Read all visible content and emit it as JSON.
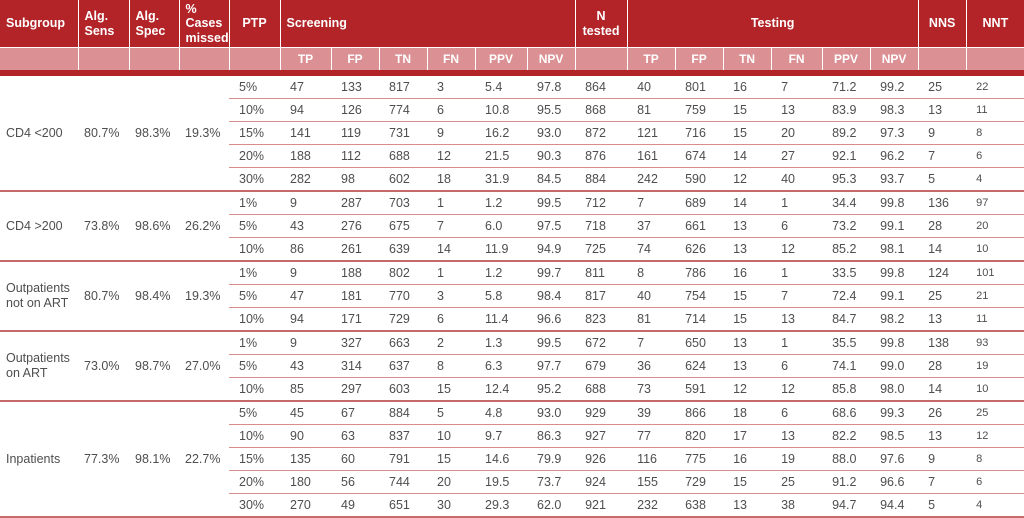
{
  "colors": {
    "header_dark": "#b22428",
    "header_light": "#db9093",
    "inner_rule": "#d98c8c",
    "group_rule": "#c66a6a",
    "body_text": "#4e4e4e"
  },
  "table": {
    "header": {
      "subgroup": "Subgroup",
      "alg_sens": "Alg. Sens",
      "alg_spec": "Alg. Spec",
      "cases_missed": "% Cases missed",
      "ptp": "PTP",
      "screening": "Screening",
      "n_tested": "N tested",
      "testing": "Testing",
      "nns": "NNS",
      "nnt": "NNT",
      "sub_columns": [
        "TP",
        "FP",
        "TN",
        "FN",
        "PPV",
        "NPV"
      ]
    },
    "groups": [
      {
        "subgroup": "CD4 <200",
        "alg_sens": "80.7%",
        "alg_spec": "98.3%",
        "cases_missed": "19.3%",
        "rows": [
          {
            "ptp": "5%",
            "screening": [
              "47",
              "133",
              "817",
              "3",
              "5.4",
              "97.8"
            ],
            "n_tested": "864",
            "testing": [
              "40",
              "801",
              "16",
              "7",
              "71.2",
              "99.2"
            ],
            "nns": "25",
            "nnt": "22"
          },
          {
            "ptp": "10%",
            "screening": [
              "94",
              "126",
              "774",
              "6",
              "10.8",
              "95.5"
            ],
            "n_tested": "868",
            "testing": [
              "81",
              "759",
              "15",
              "13",
              "83.9",
              "98.3"
            ],
            "nns": "13",
            "nnt": "11"
          },
          {
            "ptp": "15%",
            "screening": [
              "141",
              "119",
              "731",
              "9",
              "16.2",
              "93.0"
            ],
            "n_tested": "872",
            "testing": [
              "121",
              "716",
              "15",
              "20",
              "89.2",
              "97.3"
            ],
            "nns": "9",
            "nnt": "8"
          },
          {
            "ptp": "20%",
            "screening": [
              "188",
              "112",
              "688",
              "12",
              "21.5",
              "90.3"
            ],
            "n_tested": "876",
            "testing": [
              "161",
              "674",
              "14",
              "27",
              "92.1",
              "96.2"
            ],
            "nns": "7",
            "nnt": "6"
          },
          {
            "ptp": "30%",
            "screening": [
              "282",
              "98",
              "602",
              "18",
              "31.9",
              "84.5"
            ],
            "n_tested": "884",
            "testing": [
              "242",
              "590",
              "12",
              "40",
              "95.3",
              "93.7"
            ],
            "nns": "5",
            "nnt": "4"
          }
        ]
      },
      {
        "subgroup": "CD4 >200",
        "alg_sens": "73.8%",
        "alg_spec": "98.6%",
        "cases_missed": "26.2%",
        "rows": [
          {
            "ptp": "1%",
            "screening": [
              "9",
              "287",
              "703",
              "1",
              "1.2",
              "99.5"
            ],
            "n_tested": "712",
            "testing": [
              "7",
              "689",
              "14",
              "1",
              "34.4",
              "99.8"
            ],
            "nns": "136",
            "nnt": "97"
          },
          {
            "ptp": "5%",
            "screening": [
              "43",
              "276",
              "675",
              "7",
              "6.0",
              "97.5"
            ],
            "n_tested": "718",
            "testing": [
              "37",
              "661",
              "13",
              "6",
              "73.2",
              "99.1"
            ],
            "nns": "28",
            "nnt": "20"
          },
          {
            "ptp": "10%",
            "screening": [
              "86",
              "261",
              "639",
              "14",
              "11.9",
              "94.9"
            ],
            "n_tested": "725",
            "testing": [
              "74",
              "626",
              "13",
              "12",
              "85.2",
              "98.1"
            ],
            "nns": "14",
            "nnt": "10"
          }
        ]
      },
      {
        "subgroup": "Outpatients not on ART",
        "alg_sens": "80.7%",
        "alg_spec": "98.4%",
        "cases_missed": "19.3%",
        "rows": [
          {
            "ptp": "1%",
            "screening": [
              "9",
              "188",
              "802",
              "1",
              "1.2",
              "99.7"
            ],
            "n_tested": "811",
            "testing": [
              "8",
              "786",
              "16",
              "1",
              "33.5",
              "99.8"
            ],
            "nns": "124",
            "nnt": "101"
          },
          {
            "ptp": "5%",
            "screening": [
              "47",
              "181",
              "770",
              "3",
              "5.8",
              "98.4"
            ],
            "n_tested": "817",
            "testing": [
              "40",
              "754",
              "15",
              "7",
              "72.4",
              "99.1"
            ],
            "nns": "25",
            "nnt": "21"
          },
          {
            "ptp": "10%",
            "screening": [
              "94",
              "171",
              "729",
              "6",
              "11.4",
              "96.6"
            ],
            "n_tested": "823",
            "testing": [
              "81",
              "714",
              "15",
              "13",
              "84.7",
              "98.2"
            ],
            "nns": "13",
            "nnt": "11"
          }
        ]
      },
      {
        "subgroup": "Outpatients on ART",
        "alg_sens": "73.0%",
        "alg_spec": "98.7%",
        "cases_missed": "27.0%",
        "rows": [
          {
            "ptp": "1%",
            "screening": [
              "9",
              "327",
              "663",
              "2",
              "1.3",
              "99.5"
            ],
            "n_tested": "672",
            "testing": [
              "7",
              "650",
              "13",
              "1",
              "35.5",
              "99.8"
            ],
            "nns": "138",
            "nnt": "93"
          },
          {
            "ptp": "5%",
            "screening": [
              "43",
              "314",
              "637",
              "8",
              "6.3",
              "97.7"
            ],
            "n_tested": "679",
            "testing": [
              "36",
              "624",
              "13",
              "6",
              "74.1",
              "99.0"
            ],
            "nns": "28",
            "nnt": "19"
          },
          {
            "ptp": "10%",
            "screening": [
              "85",
              "297",
              "603",
              "15",
              "12.4",
              "95.2"
            ],
            "n_tested": "688",
            "testing": [
              "73",
              "591",
              "12",
              "12",
              "85.8",
              "98.0"
            ],
            "nns": "14",
            "nnt": "10"
          }
        ]
      },
      {
        "subgroup": "Inpatients",
        "alg_sens": "77.3%",
        "alg_spec": "98.1%",
        "cases_missed": "22.7%",
        "rows": [
          {
            "ptp": "5%",
            "screening": [
              "45",
              "67",
              "884",
              "5",
              "4.8",
              "93.0"
            ],
            "n_tested": "929",
            "testing": [
              "39",
              "866",
              "18",
              "6",
              "68.6",
              "99.3"
            ],
            "nns": "26",
            "nnt": "25"
          },
          {
            "ptp": "10%",
            "screening": [
              "90",
              "63",
              "837",
              "10",
              "9.7",
              "86.3"
            ],
            "n_tested": "927",
            "testing": [
              "77",
              "820",
              "17",
              "13",
              "82.2",
              "98.5"
            ],
            "nns": "13",
            "nnt": "12"
          },
          {
            "ptp": "15%",
            "screening": [
              "135",
              "60",
              "791",
              "15",
              "14.6",
              "79.9"
            ],
            "n_tested": "926",
            "testing": [
              "116",
              "775",
              "16",
              "19",
              "88.0",
              "97.6"
            ],
            "nns": "9",
            "nnt": "8"
          },
          {
            "ptp": "20%",
            "screening": [
              "180",
              "56",
              "744",
              "20",
              "19.5",
              "73.7"
            ],
            "n_tested": "924",
            "testing": [
              "155",
              "729",
              "15",
              "25",
              "91.2",
              "96.6"
            ],
            "nns": "7",
            "nnt": "6"
          },
          {
            "ptp": "30%",
            "screening": [
              "270",
              "49",
              "651",
              "30",
              "29.3",
              "62.0"
            ],
            "n_tested": "921",
            "testing": [
              "232",
              "638",
              "13",
              "38",
              "94.7",
              "94.4"
            ],
            "nns": "5",
            "nnt": "4"
          }
        ]
      }
    ]
  }
}
